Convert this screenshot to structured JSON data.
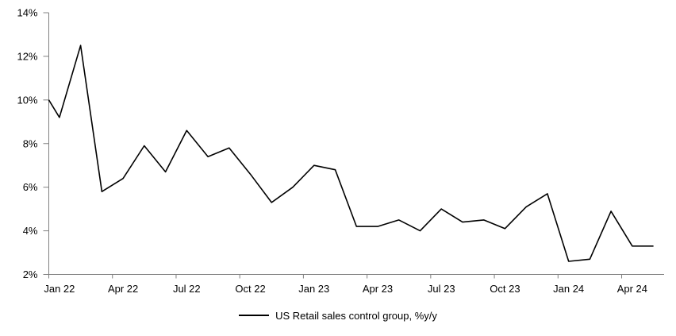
{
  "chart_data": {
    "type": "line",
    "title": "",
    "categories": [
      "Jan 22",
      "Feb 22",
      "Mar 22",
      "Apr 22",
      "May 22",
      "Jun 22",
      "Jul 22",
      "Aug 22",
      "Sep 22",
      "Oct 22",
      "Nov 22",
      "Dec 22",
      "Jan 23",
      "Feb 23",
      "Mar 23",
      "Apr 23",
      "May 23",
      "Jun 23",
      "Jul 23",
      "Aug 23",
      "Sep 23",
      "Oct 23",
      "Nov 23",
      "Dec 23",
      "Jan 24",
      "Feb 24",
      "Mar 24",
      "Apr 24",
      "May 24"
    ],
    "series": [
      {
        "name": "US Retail sales control group, %y/y",
        "values": [
          9.2,
          12.5,
          5.8,
          6.4,
          7.9,
          6.7,
          8.6,
          7.4,
          7.8,
          6.6,
          5.3,
          6.0,
          7.0,
          6.8,
          4.2,
          4.2,
          4.5,
          4.0,
          5.0,
          4.4,
          4.5,
          4.1,
          5.1,
          5.7,
          2.6,
          2.7,
          4.9,
          3.3,
          3.3
        ],
        "color": "#000000"
      }
    ],
    "axis_clip_start_value": 10.0,
    "ylim": [
      2,
      14
    ],
    "y_tick_values": [
      14,
      12,
      10,
      8,
      6,
      4,
      2
    ],
    "y_tick_labels": [
      "14%",
      "12%",
      "10%",
      "8%",
      "6%",
      "4%",
      "2%"
    ],
    "x_tick_labels": [
      "Jan 22",
      "Apr 22",
      "Jul 22",
      "Oct 22",
      "Jan 23",
      "Apr 23",
      "Jul 23",
      "Oct 23",
      "Jan 24",
      "Apr 24"
    ],
    "x_tick_every": 3,
    "grid": "off",
    "legend_position": "bottom-center",
    "axis_color": "#808080",
    "text_color": "#000000",
    "background": "#ffffff",
    "line_width": 1.6
  }
}
